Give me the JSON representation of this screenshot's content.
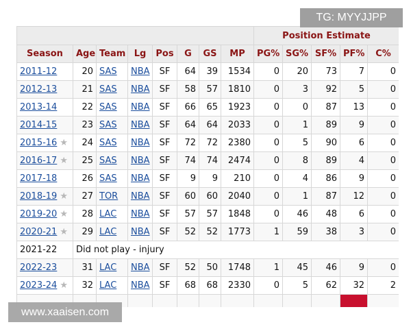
{
  "table": {
    "group_header": "Position Estimate",
    "columns": [
      "Season",
      "Age",
      "Team",
      "Lg",
      "Pos",
      "G",
      "GS",
      "MP",
      "PG%",
      "SG%",
      "SF%",
      "PF%",
      "C%"
    ],
    "rows": [
      {
        "season": "2011-12",
        "star": false,
        "age": "20",
        "team": "SAS",
        "lg": "NBA",
        "pos": "SF",
        "g": "64",
        "gs": "39",
        "mp": "1534",
        "pg": "0",
        "sg": "20",
        "sf": "73",
        "pf": "7",
        "c": "0"
      },
      {
        "season": "2012-13",
        "star": false,
        "age": "21",
        "team": "SAS",
        "lg": "NBA",
        "pos": "SF",
        "g": "58",
        "gs": "57",
        "mp": "1810",
        "pg": "0",
        "sg": "3",
        "sf": "92",
        "pf": "5",
        "c": "0"
      },
      {
        "season": "2013-14",
        "star": false,
        "age": "22",
        "team": "SAS",
        "lg": "NBA",
        "pos": "SF",
        "g": "66",
        "gs": "65",
        "mp": "1923",
        "pg": "0",
        "sg": "0",
        "sf": "87",
        "pf": "13",
        "c": "0"
      },
      {
        "season": "2014-15",
        "star": false,
        "age": "23",
        "team": "SAS",
        "lg": "NBA",
        "pos": "SF",
        "g": "64",
        "gs": "64",
        "mp": "2033",
        "pg": "0",
        "sg": "1",
        "sf": "89",
        "pf": "9",
        "c": "0"
      },
      {
        "season": "2015-16",
        "star": true,
        "age": "24",
        "team": "SAS",
        "lg": "NBA",
        "pos": "SF",
        "g": "72",
        "gs": "72",
        "mp": "2380",
        "pg": "0",
        "sg": "5",
        "sf": "90",
        "pf": "6",
        "c": "0"
      },
      {
        "season": "2016-17",
        "star": true,
        "age": "25",
        "team": "SAS",
        "lg": "NBA",
        "pos": "SF",
        "g": "74",
        "gs": "74",
        "mp": "2474",
        "pg": "0",
        "sg": "8",
        "sf": "89",
        "pf": "4",
        "c": "0"
      },
      {
        "season": "2017-18",
        "star": false,
        "age": "26",
        "team": "SAS",
        "lg": "NBA",
        "pos": "SF",
        "g": "9",
        "gs": "9",
        "mp": "210",
        "pg": "0",
        "sg": "4",
        "sf": "86",
        "pf": "9",
        "c": "0"
      },
      {
        "season": "2018-19",
        "star": true,
        "age": "27",
        "team": "TOR",
        "lg": "NBA",
        "pos": "SF",
        "g": "60",
        "gs": "60",
        "mp": "2040",
        "pg": "0",
        "sg": "1",
        "sf": "87",
        "pf": "12",
        "c": "0"
      },
      {
        "season": "2019-20",
        "star": true,
        "age": "28",
        "team": "LAC",
        "lg": "NBA",
        "pos": "SF",
        "g": "57",
        "gs": "57",
        "mp": "1848",
        "pg": "0",
        "sg": "46",
        "sf": "48",
        "pf": "6",
        "c": "0"
      },
      {
        "season": "2020-21",
        "star": true,
        "age": "29",
        "team": "LAC",
        "lg": "NBA",
        "pos": "SF",
        "g": "52",
        "gs": "52",
        "mp": "1773",
        "pg": "1",
        "sg": "59",
        "sf": "38",
        "pf": "3",
        "c": "0"
      },
      {
        "season": "2021-22",
        "dnp": "Did not play - injury"
      },
      {
        "season": "2022-23",
        "star": false,
        "age": "31",
        "team": "LAC",
        "lg": "NBA",
        "pos": "SF",
        "g": "52",
        "gs": "50",
        "mp": "1748",
        "pg": "1",
        "sg": "45",
        "sf": "46",
        "pf": "9",
        "c": "0"
      },
      {
        "season": "2023-24",
        "star": true,
        "age": "32",
        "team": "LAC",
        "lg": "NBA",
        "pos": "SF",
        "g": "68",
        "gs": "68",
        "mp": "2330",
        "pg": "0",
        "sg": "5",
        "sf": "62",
        "pf": "32",
        "c": "2"
      }
    ],
    "highlight_color": "#c8102e"
  },
  "watermarks": {
    "top": "TG: MYYJJPP",
    "bottom": "www.xaaisen.com"
  }
}
